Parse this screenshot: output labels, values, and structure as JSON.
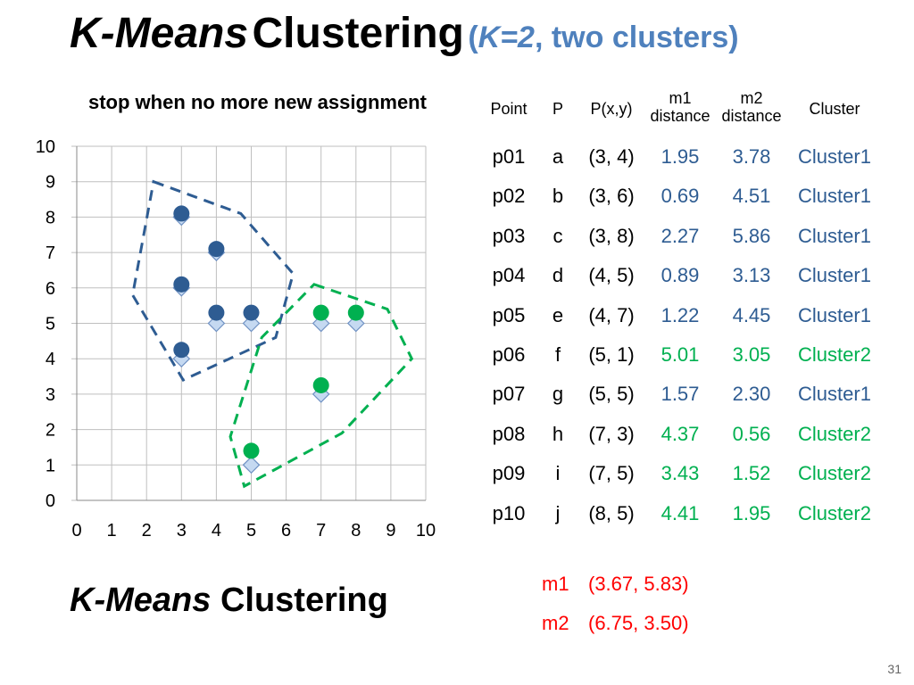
{
  "title": {
    "italic": "K-Means",
    "bold": "Clustering",
    "paren_open": "(",
    "paren_italic": "K=2",
    "paren_rest": ", two clusters)"
  },
  "subtitle": "stop when no more new assignment",
  "colors": {
    "cluster1": "#2e5c92",
    "cluster2": "#00b050",
    "mean": "#ff0000",
    "accent": "#4f81bd"
  },
  "chart_data": {
    "type": "scatter",
    "xlim": [
      0,
      10
    ],
    "ylim": [
      0,
      10
    ],
    "x_ticks": [
      "0",
      "1",
      "2",
      "3",
      "4",
      "5",
      "6",
      "7",
      "8",
      "9",
      "10"
    ],
    "y_ticks": [
      "0",
      "1",
      "2",
      "3",
      "4",
      "5",
      "6",
      "7",
      "8",
      "9",
      "10"
    ],
    "grid": true,
    "series": [
      {
        "marker": "diamond",
        "points": [
          [
            3,
            4
          ],
          [
            3,
            6
          ],
          [
            3,
            8
          ],
          [
            4,
            5
          ],
          [
            4,
            7
          ],
          [
            5,
            1
          ],
          [
            5,
            5
          ],
          [
            7,
            3
          ],
          [
            7,
            5
          ],
          [
            8,
            5
          ]
        ]
      },
      {
        "marker": "circle",
        "color": "#2e5c92",
        "points": [
          [
            3,
            4.25
          ],
          [
            3,
            6.1
          ],
          [
            3,
            8.1
          ],
          [
            4,
            5.3
          ],
          [
            4,
            7.1
          ],
          [
            5,
            5.3
          ]
        ]
      },
      {
        "marker": "circle",
        "color": "#00b050",
        "points": [
          [
            5,
            1.4
          ],
          [
            7,
            3.25
          ],
          [
            7,
            5.3
          ],
          [
            8,
            5.3
          ]
        ]
      }
    ],
    "hulls": [
      {
        "color": "#2e5c92",
        "points": [
          [
            2.2,
            9
          ],
          [
            4.7,
            8.1
          ],
          [
            6.2,
            6.4
          ],
          [
            5.7,
            4.6
          ],
          [
            3.05,
            3.4
          ],
          [
            1.6,
            5.8
          ]
        ]
      },
      {
        "color": "#00b050",
        "points": [
          [
            6.8,
            6.1
          ],
          [
            8.9,
            5.4
          ],
          [
            9.6,
            4.0
          ],
          [
            7.6,
            1.9
          ],
          [
            4.8,
            0.4
          ],
          [
            4.4,
            1.8
          ],
          [
            5.3,
            4.6
          ]
        ]
      }
    ]
  },
  "table": {
    "headers": {
      "point": "Point",
      "p": "P",
      "pxy": "P(x,y)",
      "m1_top": "m1",
      "m1_bottom": "distance",
      "m2_top": "m2",
      "m2_bottom": "distance",
      "cluster": "Cluster"
    },
    "rows": [
      {
        "point": "p01",
        "p": "a",
        "xy": "(3, 4)",
        "m1": "1.95",
        "m2": "3.78",
        "cluster": "Cluster1",
        "group": 1
      },
      {
        "point": "p02",
        "p": "b",
        "xy": "(3, 6)",
        "m1": "0.69",
        "m2": "4.51",
        "cluster": "Cluster1",
        "group": 1
      },
      {
        "point": "p03",
        "p": "c",
        "xy": "(3, 8)",
        "m1": "2.27",
        "m2": "5.86",
        "cluster": "Cluster1",
        "group": 1
      },
      {
        "point": "p04",
        "p": "d",
        "xy": "(4, 5)",
        "m1": "0.89",
        "m2": "3.13",
        "cluster": "Cluster1",
        "group": 1
      },
      {
        "point": "p05",
        "p": "e",
        "xy": "(4, 7)",
        "m1": "1.22",
        "m2": "4.45",
        "cluster": "Cluster1",
        "group": 1
      },
      {
        "point": "p06",
        "p": "f",
        "xy": "(5, 1)",
        "m1": "5.01",
        "m2": "3.05",
        "cluster": "Cluster2",
        "group": 2
      },
      {
        "point": "p07",
        "p": "g",
        "xy": "(5, 5)",
        "m1": "1.57",
        "m2": "2.30",
        "cluster": "Cluster1",
        "group": 1
      },
      {
        "point": "p08",
        "p": "h",
        "xy": "(7, 3)",
        "m1": "4.37",
        "m2": "0.56",
        "cluster": "Cluster2",
        "group": 2
      },
      {
        "point": "p09",
        "p": "i",
        "xy": "(7, 5)",
        "m1": "3.43",
        "m2": "1.52",
        "cluster": "Cluster2",
        "group": 2
      },
      {
        "point": "p10",
        "p": "j",
        "xy": "(8, 5)",
        "m1": "4.41",
        "m2": "1.95",
        "cluster": "Cluster2",
        "group": 2
      }
    ]
  },
  "means": {
    "m1_label": "m1",
    "m1_value": "(3.67, 5.83)",
    "m2_label": "m2",
    "m2_value": "(6.75, 3.50)"
  },
  "bottom_title": {
    "italic": "K-Means",
    "bold": "Clustering"
  },
  "page_number": "31"
}
